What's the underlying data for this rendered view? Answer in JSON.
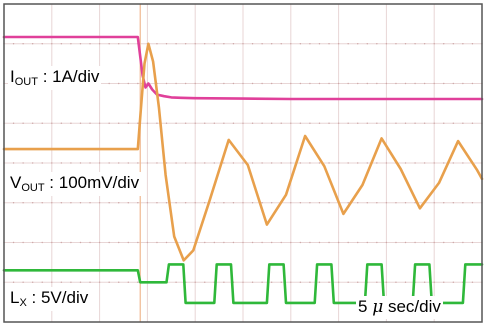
{
  "chart_data": {
    "type": "line",
    "title": "",
    "xlabel": "",
    "ylabel": "",
    "grid": true,
    "grid_divisions": {
      "x": 10,
      "y": 8
    },
    "timebase_label": {
      "prefix": "5 ",
      "mu": "μ",
      "suffix": " sec/div"
    },
    "trigger_time_div": 2.85,
    "colors": {
      "background": "#ffffff",
      "grid": "#e8d6d6",
      "grid_dots": "#cfa8a8",
      "trigger": "#f0b890",
      "border": "#555555"
    },
    "series": [
      {
        "key": "iout",
        "label": {
          "main": "I",
          "sub": "OUT",
          "rest": " : 1A/div"
        },
        "color": "#e0409a",
        "x": [
          0,
          2.8,
          2.9,
          2.96,
          3.02,
          3.1,
          3.2,
          3.35,
          3.5,
          3.7,
          4,
          5,
          6,
          7,
          8,
          9,
          10
        ],
        "y": [
          7.17,
          7.17,
          6.2,
          5.9,
          6.0,
          5.85,
          5.72,
          5.68,
          5.65,
          5.64,
          5.63,
          5.62,
          5.61,
          5.61,
          5.61,
          5.61,
          5.61
        ]
      },
      {
        "key": "vout",
        "label": {
          "main": "V",
          "sub": "OUT",
          "rest": " : 100mV/div"
        },
        "color": "#e8a04c",
        "x": [
          0,
          2.8,
          2.86,
          2.94,
          3.02,
          3.12,
          3.24,
          3.38,
          3.56,
          3.76,
          3.96,
          4.3,
          4.7,
          5.1,
          5.5,
          5.9,
          6.3,
          6.7,
          7.1,
          7.5,
          7.9,
          8.3,
          8.7,
          9.1,
          9.5,
          9.9,
          10
        ],
        "y": [
          4.35,
          4.35,
          5.3,
          6.5,
          7.0,
          6.55,
          5.4,
          3.7,
          2.15,
          1.55,
          1.8,
          3.05,
          4.58,
          3.95,
          2.45,
          3.2,
          4.68,
          3.92,
          2.72,
          3.45,
          4.62,
          3.85,
          2.86,
          3.5,
          4.55,
          3.82,
          3.6
        ]
      },
      {
        "key": "lx",
        "label": {
          "main": "L",
          "sub": "X",
          "rest": " : 5V/div"
        },
        "color": "#2fb83a",
        "x": [
          0,
          2.8,
          2.85,
          3.4,
          3.45,
          3.75,
          3.8,
          4.4,
          4.45,
          4.75,
          4.8,
          5.5,
          5.55,
          5.85,
          5.9,
          6.5,
          6.55,
          6.85,
          6.9,
          7.55,
          7.6,
          7.9,
          7.95,
          8.55,
          8.6,
          8.9,
          8.95,
          9.6,
          9.65,
          10
        ],
        "y": [
          1.3,
          1.3,
          1.0,
          1.0,
          1.45,
          1.45,
          0.48,
          0.48,
          1.45,
          1.45,
          0.48,
          0.48,
          1.45,
          1.45,
          0.48,
          0.48,
          1.45,
          1.45,
          0.48,
          0.48,
          1.45,
          1.45,
          0.48,
          0.48,
          1.45,
          1.45,
          0.48,
          0.48,
          1.45,
          1.45
        ]
      }
    ]
  }
}
